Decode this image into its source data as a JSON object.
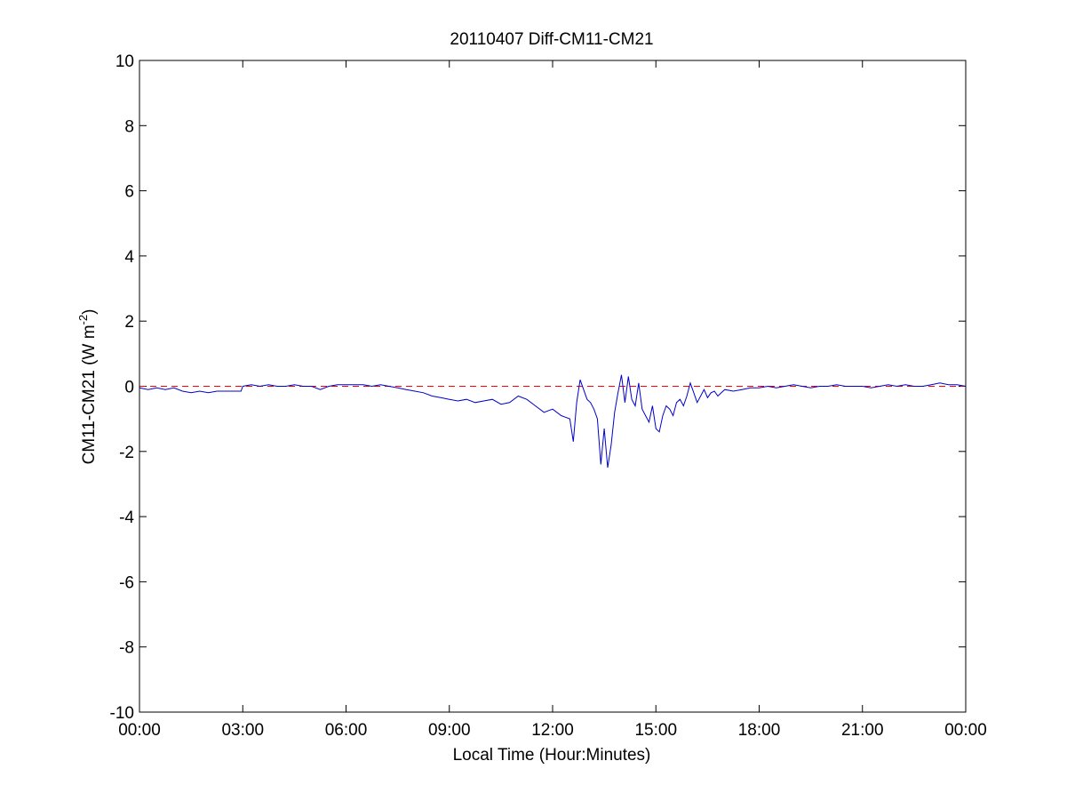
{
  "chart_data": {
    "type": "line",
    "title": "20110407 Diff-CM11-CM21",
    "xlabel": "Local Time (Hour:Minutes)",
    "ylabel": "CM11-CM21 (W m",
    "ylabel_sup": "-2",
    "ylabel_close": ")",
    "xlim": [
      0,
      24
    ],
    "ylim": [
      -10,
      10
    ],
    "xticks": [
      0,
      3,
      6,
      9,
      12,
      15,
      18,
      21,
      24
    ],
    "xtick_labels": [
      "00:00",
      "03:00",
      "06:00",
      "09:00",
      "12:00",
      "15:00",
      "18:00",
      "21:00",
      "00:00"
    ],
    "yticks": [
      -10,
      -8,
      -6,
      -4,
      -2,
      0,
      2,
      4,
      6,
      8,
      10
    ],
    "ytick_labels": [
      "-10",
      "-8",
      "-6",
      "-4",
      "-2",
      "0",
      "2",
      "4",
      "6",
      "8",
      "10"
    ],
    "grid": false,
    "reference_line": {
      "y": 0,
      "color": "#ff0000",
      "style": "dashed"
    },
    "series": [
      {
        "color": "#0000cc",
        "x": [
          0.0,
          0.25,
          0.5,
          0.75,
          1.0,
          1.25,
          1.5,
          1.75,
          2.0,
          2.25,
          2.5,
          2.75,
          2.95,
          3.0,
          3.25,
          3.5,
          3.75,
          4.0,
          4.25,
          4.5,
          4.75,
          5.0,
          5.25,
          5.5,
          5.75,
          6.0,
          6.25,
          6.5,
          6.75,
          7.0,
          7.25,
          7.5,
          7.75,
          8.0,
          8.25,
          8.5,
          8.75,
          9.0,
          9.25,
          9.5,
          9.75,
          10.0,
          10.25,
          10.5,
          10.75,
          11.0,
          11.25,
          11.5,
          11.75,
          12.0,
          12.25,
          12.5,
          12.6,
          12.7,
          12.8,
          12.9,
          13.0,
          13.1,
          13.2,
          13.3,
          13.4,
          13.5,
          13.6,
          13.7,
          13.8,
          13.9,
          14.0,
          14.1,
          14.2,
          14.3,
          14.4,
          14.5,
          14.6,
          14.7,
          14.8,
          14.9,
          15.0,
          15.1,
          15.2,
          15.3,
          15.4,
          15.5,
          15.6,
          15.7,
          15.8,
          15.9,
          16.0,
          16.1,
          16.2,
          16.3,
          16.4,
          16.5,
          16.6,
          16.7,
          16.8,
          16.9,
          17.0,
          17.25,
          17.5,
          17.75,
          18.0,
          18.25,
          18.5,
          18.75,
          19.0,
          19.25,
          19.5,
          19.75,
          20.0,
          20.25,
          20.5,
          20.75,
          21.0,
          21.25,
          21.5,
          21.75,
          22.0,
          22.25,
          22.5,
          22.75,
          23.0,
          23.25,
          23.5,
          23.75,
          24.0
        ],
        "y": [
          -0.05,
          -0.1,
          -0.05,
          -0.1,
          -0.05,
          -0.15,
          -0.2,
          -0.15,
          -0.2,
          -0.15,
          -0.15,
          -0.15,
          -0.15,
          0.0,
          0.05,
          0.0,
          0.05,
          0.0,
          0.0,
          0.05,
          0.0,
          0.0,
          -0.1,
          0.0,
          0.05,
          0.05,
          0.05,
          0.05,
          0.0,
          0.05,
          0.0,
          -0.05,
          -0.1,
          -0.15,
          -0.2,
          -0.3,
          -0.35,
          -0.4,
          -0.45,
          -0.4,
          -0.5,
          -0.45,
          -0.4,
          -0.55,
          -0.5,
          -0.3,
          -0.4,
          -0.6,
          -0.8,
          -0.7,
          -0.9,
          -1.0,
          -1.7,
          -0.5,
          0.2,
          -0.1,
          -0.4,
          -0.5,
          -0.7,
          -1.0,
          -2.4,
          -1.3,
          -2.5,
          -1.8,
          -0.8,
          -0.2,
          0.35,
          -0.5,
          0.3,
          -0.4,
          -0.6,
          0.1,
          -0.7,
          -0.9,
          -1.1,
          -0.6,
          -1.3,
          -1.4,
          -0.9,
          -0.6,
          -0.7,
          -0.9,
          -0.5,
          -0.4,
          -0.6,
          -0.3,
          0.1,
          -0.2,
          -0.5,
          -0.3,
          -0.1,
          -0.35,
          -0.2,
          -0.15,
          -0.3,
          -0.2,
          -0.1,
          -0.15,
          -0.1,
          -0.05,
          -0.05,
          0.0,
          -0.05,
          0.0,
          0.05,
          0.0,
          -0.05,
          0.0,
          0.0,
          0.05,
          0.0,
          0.0,
          0.0,
          -0.05,
          0.0,
          0.05,
          0.0,
          0.05,
          0.0,
          0.0,
          0.05,
          0.1,
          0.05,
          0.05,
          0.0
        ]
      }
    ]
  }
}
